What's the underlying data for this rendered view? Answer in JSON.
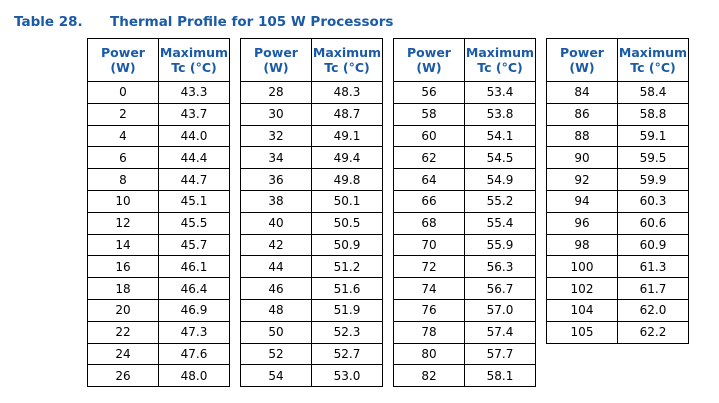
{
  "caption": {
    "label": "Table 28.",
    "title": "Thermal Profile for 105 W Processors"
  },
  "headers": {
    "power_l1": "Power",
    "power_l2": "(W)",
    "max_l1": "Maximum",
    "max_l2": "Tc (°C)"
  },
  "tables": [
    {
      "rows": [
        [
          "0",
          "43.3"
        ],
        [
          "2",
          "43.7"
        ],
        [
          "4",
          "44.0"
        ],
        [
          "6",
          "44.4"
        ],
        [
          "8",
          "44.7"
        ],
        [
          "10",
          "45.1"
        ],
        [
          "12",
          "45.5"
        ],
        [
          "14",
          "45.7"
        ],
        [
          "16",
          "46.1"
        ],
        [
          "18",
          "46.4"
        ],
        [
          "20",
          "46.9"
        ],
        [
          "22",
          "47.3"
        ],
        [
          "24",
          "47.6"
        ],
        [
          "26",
          "48.0"
        ]
      ]
    },
    {
      "rows": [
        [
          "28",
          "48.3"
        ],
        [
          "30",
          "48.7"
        ],
        [
          "32",
          "49.1"
        ],
        [
          "34",
          "49.4"
        ],
        [
          "36",
          "49.8"
        ],
        [
          "38",
          "50.1"
        ],
        [
          "40",
          "50.5"
        ],
        [
          "42",
          "50.9"
        ],
        [
          "44",
          "51.2"
        ],
        [
          "46",
          "51.6"
        ],
        [
          "48",
          "51.9"
        ],
        [
          "50",
          "52.3"
        ],
        [
          "52",
          "52.7"
        ],
        [
          "54",
          "53.0"
        ]
      ]
    },
    {
      "rows": [
        [
          "56",
          "53.4"
        ],
        [
          "58",
          "53.8"
        ],
        [
          "60",
          "54.1"
        ],
        [
          "62",
          "54.5"
        ],
        [
          "64",
          "54.9"
        ],
        [
          "66",
          "55.2"
        ],
        [
          "68",
          "55.4"
        ],
        [
          "70",
          "55.9"
        ],
        [
          "72",
          "56.3"
        ],
        [
          "74",
          "56.7"
        ],
        [
          "76",
          "57.0"
        ],
        [
          "78",
          "57.4"
        ],
        [
          "80",
          "57.7"
        ],
        [
          "82",
          "58.1"
        ]
      ]
    },
    {
      "rows": [
        [
          "84",
          "58.4"
        ],
        [
          "86",
          "58.8"
        ],
        [
          "88",
          "59.1"
        ],
        [
          "90",
          "59.5"
        ],
        [
          "92",
          "59.9"
        ],
        [
          "94",
          "60.3"
        ],
        [
          "96",
          "60.6"
        ],
        [
          "98",
          "60.9"
        ],
        [
          "100",
          "61.3"
        ],
        [
          "102",
          "61.7"
        ],
        [
          "104",
          "62.0"
        ],
        [
          "105",
          "62.2"
        ]
      ]
    }
  ]
}
